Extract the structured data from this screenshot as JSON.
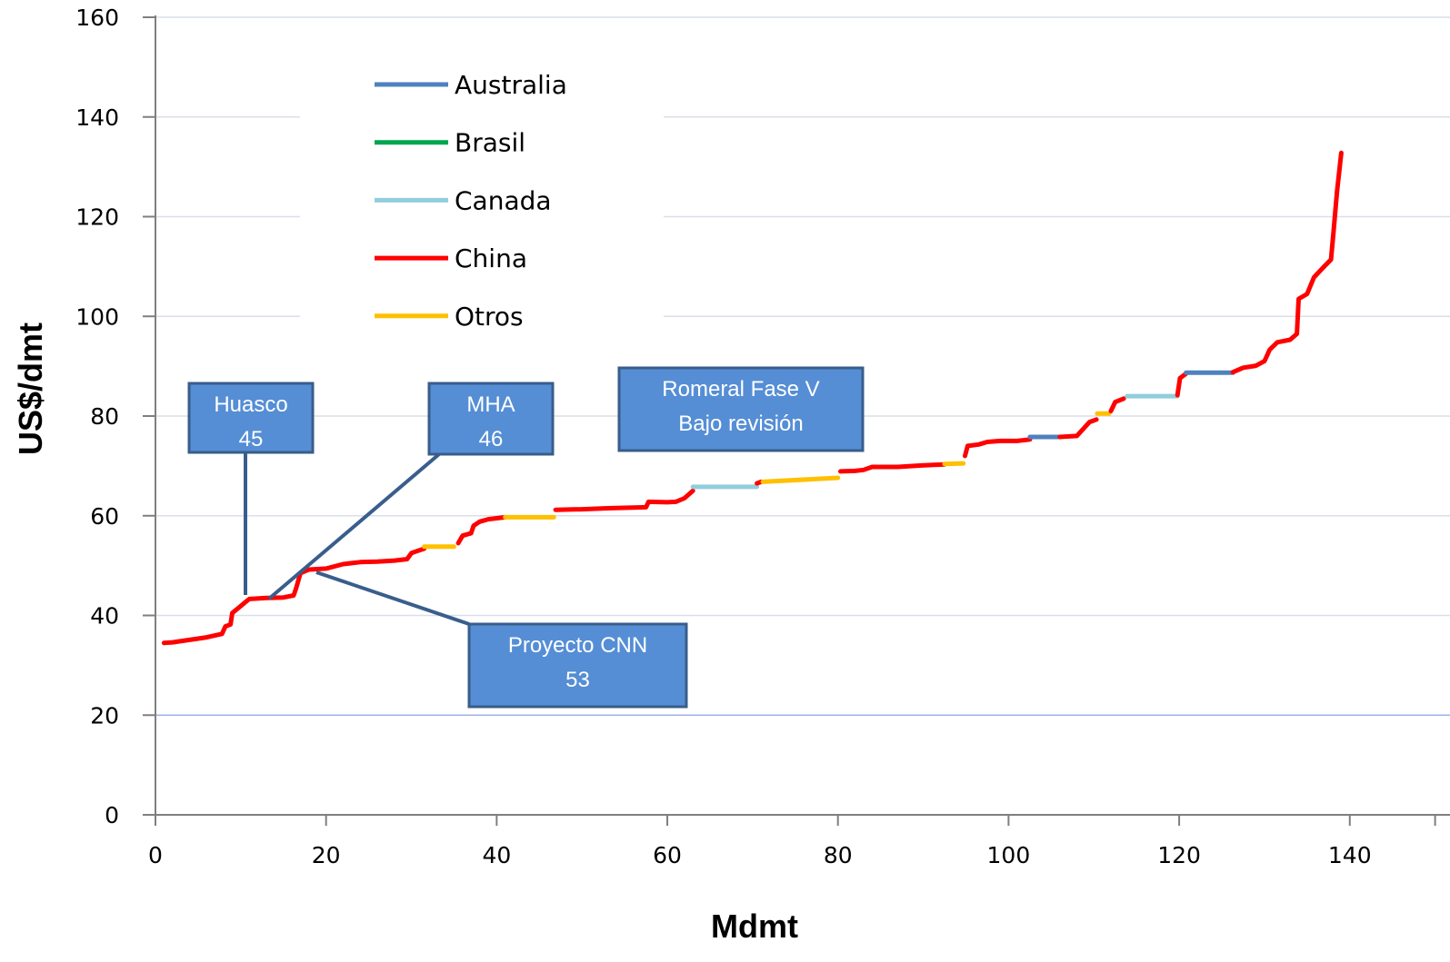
{
  "chart_data": {
    "type": "line",
    "title": "",
    "xlabel": "Mdmt",
    "ylabel": "US$/dmt",
    "xlim": [
      0,
      150
    ],
    "ylim": [
      0,
      160
    ],
    "xticks": [
      0,
      20,
      40,
      60,
      80,
      100,
      120,
      140
    ],
    "yticks": [
      0,
      20,
      40,
      60,
      80,
      100,
      120,
      140,
      160
    ],
    "grid": "horizontal",
    "legend": {
      "position": "upper-left inside plot",
      "entries": [
        {
          "name": "Australia",
          "color": "#4F81BD"
        },
        {
          "name": "Brasil",
          "color": "#00A550"
        },
        {
          "name": "Canada",
          "color": "#92CDDC"
        },
        {
          "name": "China",
          "color": "#FF0000"
        },
        {
          "name": "Otros",
          "color": "#FFC000"
        }
      ]
    },
    "segments": [
      {
        "series": "China",
        "points": [
          [
            1,
            34.5
          ],
          [
            2,
            34.6
          ],
          [
            4,
            35.1
          ],
          [
            6,
            35.6
          ],
          [
            7.8,
            36.3
          ],
          [
            8.2,
            37.8
          ],
          [
            8.8,
            38.2
          ],
          [
            9,
            40.5
          ],
          [
            9.8,
            41.6
          ],
          [
            10.5,
            42.6
          ],
          [
            11,
            43.3
          ],
          [
            13,
            43.5
          ],
          [
            15,
            43.6
          ],
          [
            16.2,
            44
          ],
          [
            16.5,
            45.5
          ],
          [
            17,
            48.5
          ],
          [
            18,
            49.2
          ],
          [
            20,
            49.4
          ],
          [
            22,
            50.3
          ],
          [
            24,
            50.7
          ],
          [
            26,
            50.8
          ],
          [
            28,
            51
          ],
          [
            29.5,
            51.3
          ],
          [
            30,
            52.5
          ],
          [
            30.8,
            53
          ],
          [
            31.5,
            53.4
          ]
        ]
      },
      {
        "series": "Otros",
        "points": [
          [
            31.5,
            53.8
          ],
          [
            35,
            53.8
          ]
        ]
      },
      {
        "series": "China",
        "points": [
          [
            35.5,
            54.5
          ],
          [
            36,
            56
          ],
          [
            37,
            56.5
          ],
          [
            37.3,
            58
          ],
          [
            38,
            58.8
          ],
          [
            39,
            59.3
          ],
          [
            41,
            59.7
          ]
        ]
      },
      {
        "series": "Otros",
        "points": [
          [
            41,
            59.7
          ],
          [
            46.7,
            59.7
          ]
        ]
      },
      {
        "series": "China",
        "points": [
          [
            46.9,
            61.2
          ],
          [
            50,
            61.3
          ],
          [
            53,
            61.5
          ],
          [
            57.5,
            61.7
          ],
          [
            57.8,
            62.8
          ],
          [
            60,
            62.7
          ],
          [
            61,
            62.8
          ],
          [
            62,
            63.5
          ],
          [
            63,
            65
          ]
        ]
      },
      {
        "series": "Canada",
        "points": [
          [
            63,
            65.8
          ],
          [
            70.5,
            65.8
          ]
        ]
      },
      {
        "series": "China",
        "points": [
          [
            70.5,
            66.5
          ],
          [
            71,
            66.8
          ]
        ]
      },
      {
        "series": "Otros",
        "points": [
          [
            71.2,
            66.8
          ],
          [
            80,
            67.6
          ]
        ]
      },
      {
        "series": "China",
        "points": [
          [
            80.3,
            68.9
          ],
          [
            82,
            69
          ],
          [
            83,
            69.2
          ],
          [
            84,
            69.8
          ],
          [
            87,
            69.8
          ],
          [
            90,
            70.1
          ],
          [
            92.5,
            70.3
          ]
        ]
      },
      {
        "series": "Otros",
        "points": [
          [
            92.5,
            70.4
          ],
          [
            94.7,
            70.5
          ]
        ]
      },
      {
        "series": "China",
        "points": [
          [
            94.9,
            72
          ],
          [
            95.2,
            74
          ],
          [
            96.5,
            74.3
          ],
          [
            97.5,
            74.8
          ],
          [
            99,
            75
          ],
          [
            101,
            75
          ],
          [
            102.5,
            75.3
          ]
        ]
      },
      {
        "series": "Australia",
        "points": [
          [
            102.5,
            75.8
          ],
          [
            106,
            75.8
          ]
        ]
      },
      {
        "series": "China",
        "points": [
          [
            106,
            75.8
          ],
          [
            108,
            76
          ],
          [
            108.8,
            77.5
          ],
          [
            109.5,
            78.8
          ],
          [
            110.3,
            79.3
          ]
        ]
      },
      {
        "series": "Otros",
        "points": [
          [
            110.4,
            80.5
          ],
          [
            111.8,
            80.5
          ]
        ]
      },
      {
        "series": "China",
        "points": [
          [
            112,
            81
          ],
          [
            112.5,
            82.8
          ],
          [
            113.5,
            83.5
          ]
        ]
      },
      {
        "series": "Canada",
        "points": [
          [
            113.9,
            84
          ],
          [
            119.8,
            84
          ]
        ]
      },
      {
        "series": "China",
        "points": [
          [
            119.8,
            84.2
          ],
          [
            120.1,
            87.6
          ],
          [
            120.8,
            88.5
          ]
        ]
      },
      {
        "series": "Australia",
        "points": [
          [
            120.8,
            88.7
          ],
          [
            126.3,
            88.7
          ]
        ]
      },
      {
        "series": "China",
        "points": [
          [
            126.3,
            88.8
          ],
          [
            127.5,
            89.7
          ],
          [
            129,
            90.1
          ],
          [
            130,
            91
          ],
          [
            130.6,
            93.3
          ],
          [
            131.5,
            94.8
          ],
          [
            133,
            95.3
          ],
          [
            133.8,
            96.5
          ],
          [
            134,
            103.5
          ],
          [
            135,
            104.5
          ],
          [
            135.8,
            107.8
          ],
          [
            137,
            110
          ],
          [
            137.8,
            111.4
          ],
          [
            138.1,
            117
          ],
          [
            138.5,
            125
          ],
          [
            139,
            132.8
          ]
        ]
      }
    ],
    "annotations": [
      {
        "lines": [
          "Huasco",
          "45"
        ]
      },
      {
        "lines": [
          "MHA",
          "46"
        ]
      },
      {
        "lines": [
          "Romeral Fase V",
          "Bajo revisión"
        ]
      },
      {
        "lines": [
          "Proyecto CNN",
          "53"
        ]
      }
    ]
  }
}
